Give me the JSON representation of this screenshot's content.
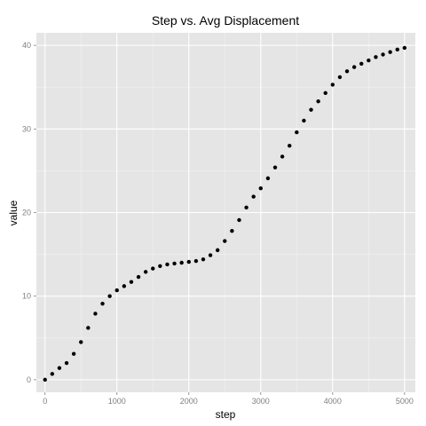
{
  "chart_data": {
    "type": "scatter",
    "title": "Step vs. Avg Displacement",
    "xlabel": "step",
    "ylabel": "value",
    "xlim": [
      -120,
      5150
    ],
    "ylim": [
      -1.5,
      41.5
    ],
    "x_ticks": [
      0,
      1000,
      2000,
      3000,
      4000,
      5000
    ],
    "y_ticks": [
      0,
      10,
      20,
      30,
      40
    ],
    "grid": true,
    "legend": "none",
    "colors": {
      "panel_background": "#e5e5e5",
      "grid_major": "#ffffff",
      "grid_minor": "#f2f2f2",
      "point": "#000000"
    },
    "series": [
      {
        "x": [
          0,
          100,
          200,
          300,
          400,
          500,
          600,
          700,
          800,
          900,
          1000,
          1100,
          1200,
          1300,
          1400,
          1500,
          1600,
          1700,
          1800,
          1900,
          2000,
          2100,
          2200,
          2300,
          2400,
          2500,
          2600,
          2700,
          2800,
          2900,
          3000,
          3100,
          3200,
          3300,
          3400,
          3500,
          3600,
          3700,
          3800,
          3900,
          4000,
          4100,
          4200,
          4300,
          4400,
          4500,
          4600,
          4700,
          4800,
          4900,
          5000
        ],
        "values": [
          0.0,
          0.7,
          1.4,
          2.0,
          3.1,
          4.5,
          6.2,
          7.9,
          9.1,
          10.0,
          10.7,
          11.2,
          11.7,
          12.3,
          12.9,
          13.3,
          13.6,
          13.8,
          13.9,
          14.0,
          14.1,
          14.2,
          14.4,
          14.9,
          15.5,
          16.6,
          17.8,
          19.1,
          20.6,
          21.9,
          22.9,
          24.1,
          25.4,
          26.7,
          28.0,
          29.6,
          31.0,
          32.3,
          33.3,
          34.3,
          35.3,
          36.2,
          36.9,
          37.4,
          37.8,
          38.2,
          38.6,
          38.9,
          39.2,
          39.5,
          39.7
        ]
      }
    ]
  }
}
